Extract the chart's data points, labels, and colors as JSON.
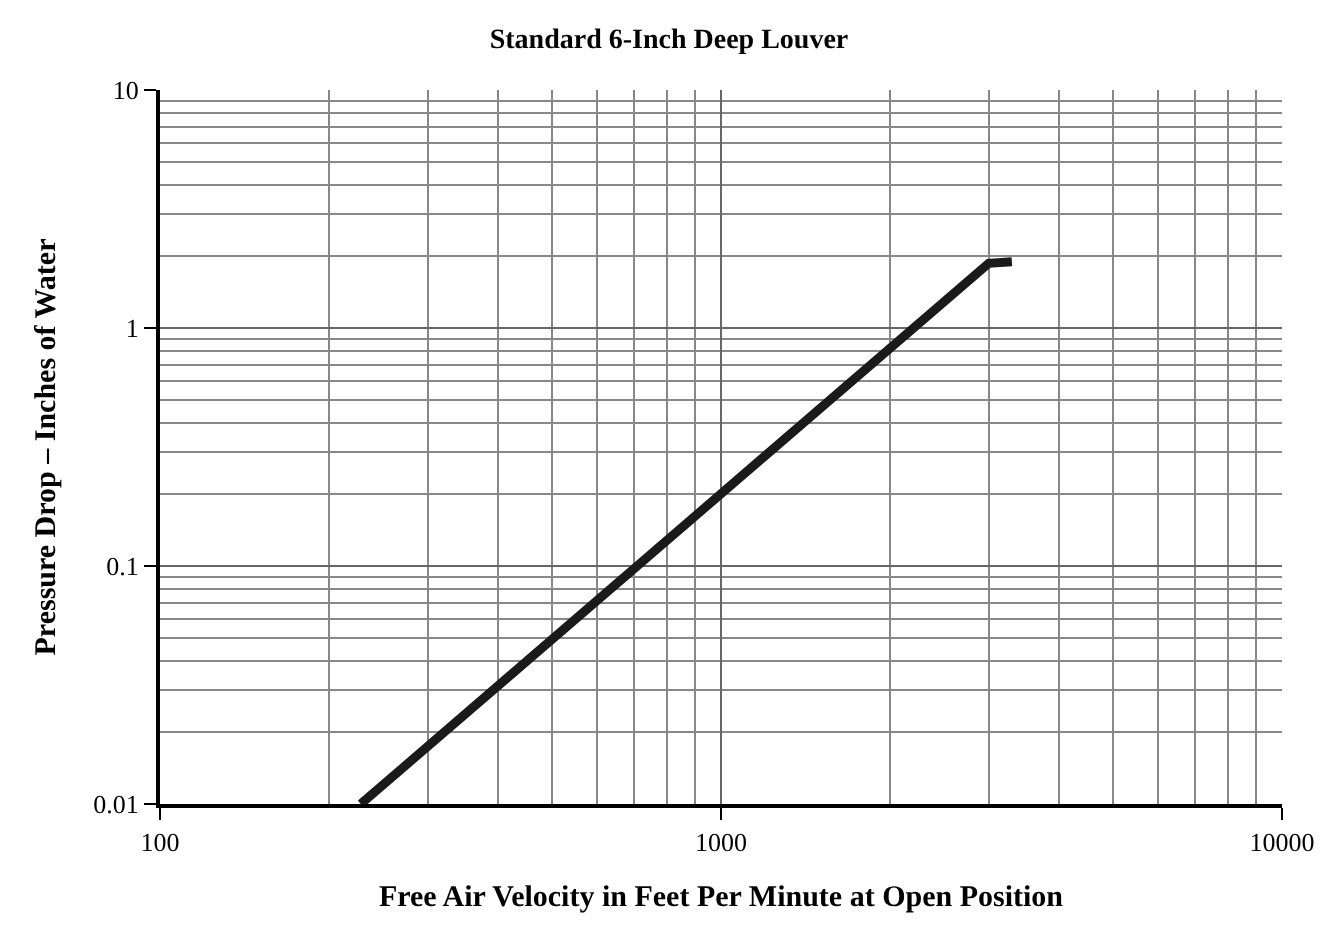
{
  "chart_data": {
    "type": "line",
    "title": "Standard 6-Inch Deep Louver",
    "xlabel": "Free Air Velocity in Feet Per Minute at Open Position",
    "ylabel": "Pressure Drop – Inches of Water",
    "x": [
      228,
      3000,
      3300
    ],
    "series": [
      {
        "color": "#1a1a1a",
        "values": [
          0.01,
          1.87,
          1.9
        ]
      }
    ],
    "log": "xy",
    "xlim": [
      100,
      10000
    ],
    "ylim": [
      0.01,
      10
    ],
    "xticks": [
      100,
      1000,
      10000
    ],
    "yticks": [
      0.01,
      0.1,
      1,
      10
    ],
    "grid": true,
    "marker": "none",
    "line_style": "solid"
  }
}
